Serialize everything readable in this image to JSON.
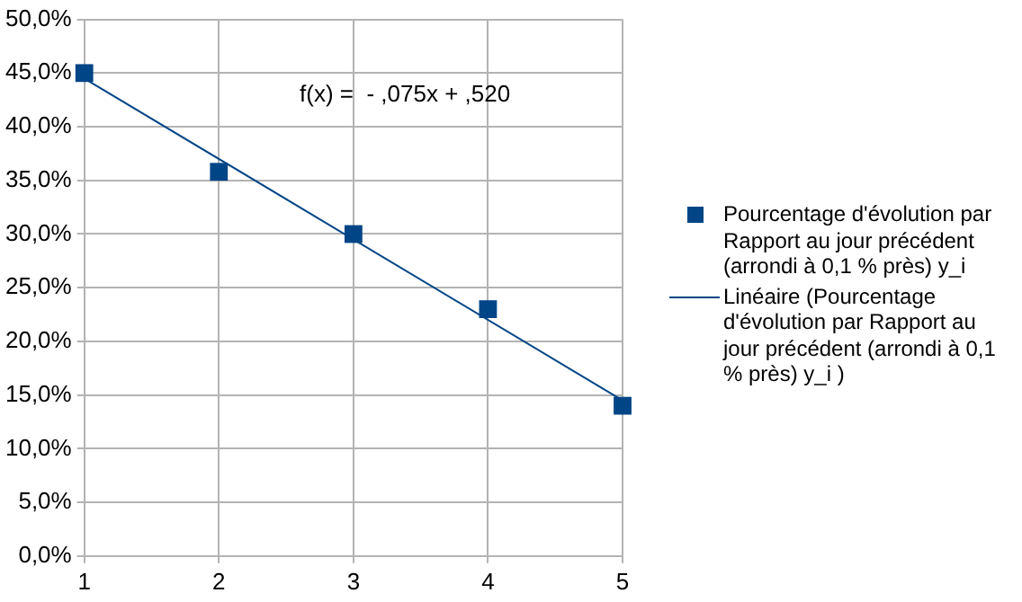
{
  "chart_data": {
    "type": "scatter",
    "x": [
      1,
      2,
      3,
      4,
      5
    ],
    "series": [
      {
        "name": "Pourcentage d'évolution par Rapport au jour précédent (arrondi à 0,1 % près) y_i",
        "color": "#004586",
        "values": [
          45,
          35.8,
          30,
          23,
          14
        ]
      },
      {
        "name": "Linéaire (Pourcentage d'évolution par Rapport au jour précédent (arrondi à 0,1 % près) y_i )",
        "type": "line",
        "color": "#004586",
        "x": [
          1,
          5
        ],
        "values": [
          44.5,
          14.5
        ],
        "marker": "none"
      }
    ],
    "xlim": [
      1,
      5
    ],
    "xticks": [
      1,
      2,
      3,
      4,
      5
    ],
    "ylim": [
      0,
      50
    ],
    "yticks": [
      {
        "value": 0,
        "label": "0,0%"
      },
      {
        "value": 5,
        "label": "5,0%"
      },
      {
        "value": 10,
        "label": "10,0%"
      },
      {
        "value": 15,
        "label": "15,0%"
      },
      {
        "value": 20,
        "label": "20,0%"
      },
      {
        "value": 25,
        "label": "25,0%"
      },
      {
        "value": 30,
        "label": "30,0%"
      },
      {
        "value": 35,
        "label": "35,0%"
      },
      {
        "value": 40,
        "label": "40,0%"
      },
      {
        "value": 45,
        "label": "45,0%"
      },
      {
        "value": 50,
        "label": "50,0%"
      }
    ],
    "annotations": [
      "f(x) =  - ,075x + ,520"
    ],
    "grid": true,
    "legend": "right",
    "marker": "square"
  }
}
